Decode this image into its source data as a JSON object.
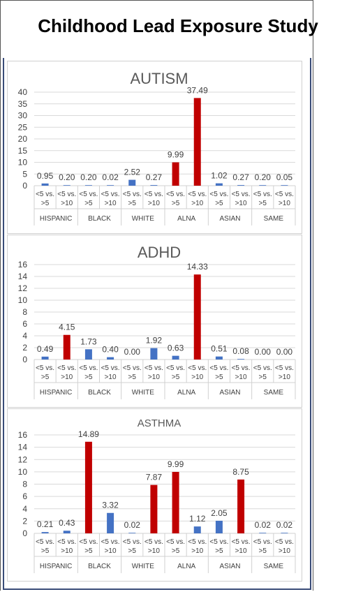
{
  "title": "Childhood Lead Exposure Study",
  "chart_data": [
    {
      "type": "bar",
      "title": "AUTISM",
      "ylim": [
        0,
        40
      ],
      "yticks": [
        0,
        5,
        10,
        15,
        20,
        25,
        30,
        35,
        40
      ],
      "groups": [
        "HISPANIC",
        "BLACK",
        "WHITE",
        "ALNA",
        "ASIAN",
        "SAME"
      ],
      "categories": [
        "<5 vs. >5",
        "<5 vs. >10"
      ],
      "values": [
        0.95,
        0.2,
        0.2,
        0.02,
        2.52,
        0.27,
        9.99,
        37.49,
        1.02,
        0.27,
        0.2,
        0.05
      ],
      "labels": [
        "0.95",
        "0.20",
        "0.20",
        "0.02",
        "2.52",
        "0.27",
        "9.99",
        "37.49",
        "1.02",
        "0.27",
        "0.20",
        "0.05"
      ],
      "highlight": [
        false,
        false,
        false,
        false,
        false,
        false,
        true,
        true,
        false,
        false,
        false,
        false
      ],
      "grid": true,
      "colors": {
        "base": "#4472c4",
        "highlight": "#c00000"
      }
    },
    {
      "type": "bar",
      "title": "ADHD",
      "ylim": [
        0,
        16
      ],
      "yticks": [
        0,
        2,
        4,
        6,
        8,
        10,
        12,
        14,
        16
      ],
      "groups": [
        "HISPANIC",
        "BLACK",
        "WHITE",
        "ALNA",
        "ASIAN",
        "SAME"
      ],
      "categories": [
        "<5 vs. >5",
        "<5 vs. >10"
      ],
      "values": [
        0.49,
        4.15,
        1.73,
        0.4,
        0.0,
        1.92,
        0.63,
        14.33,
        0.51,
        0.08,
        0.0,
        0.0
      ],
      "labels": [
        "0.49",
        "4.15",
        "1.73",
        "0.40",
        "0.00",
        "1.92",
        "0.63",
        "14.33",
        "0.51",
        "0.08",
        "0.00",
        "0.00"
      ],
      "highlight": [
        false,
        true,
        false,
        false,
        false,
        false,
        false,
        true,
        false,
        false,
        false,
        false
      ],
      "grid": true,
      "colors": {
        "base": "#4472c4",
        "highlight": "#c00000"
      }
    },
    {
      "type": "bar",
      "title": "ASTHMA",
      "ylim": [
        0,
        16
      ],
      "yticks": [
        0,
        2,
        4,
        6,
        8,
        10,
        12,
        14,
        16
      ],
      "groups": [
        "HISPANIC",
        "BLACK",
        "WHITE",
        "ALNA",
        "ASIAN",
        "SAME"
      ],
      "categories": [
        "<5 vs. >5",
        "<5 vs. >10"
      ],
      "values": [
        0.21,
        0.43,
        14.89,
        3.32,
        0.02,
        7.87,
        9.99,
        1.12,
        2.05,
        8.75,
        0.02,
        0.02
      ],
      "labels": [
        "0.21",
        "0.43",
        "14.89",
        "3.32",
        "0.02",
        "7.87",
        "9.99",
        "1.12",
        "2.05",
        "8.75",
        "0.02",
        "0.02"
      ],
      "highlight": [
        false,
        false,
        true,
        false,
        false,
        true,
        true,
        false,
        false,
        true,
        false,
        false
      ],
      "grid": true,
      "colors": {
        "base": "#4472c4",
        "highlight": "#c00000"
      }
    }
  ]
}
